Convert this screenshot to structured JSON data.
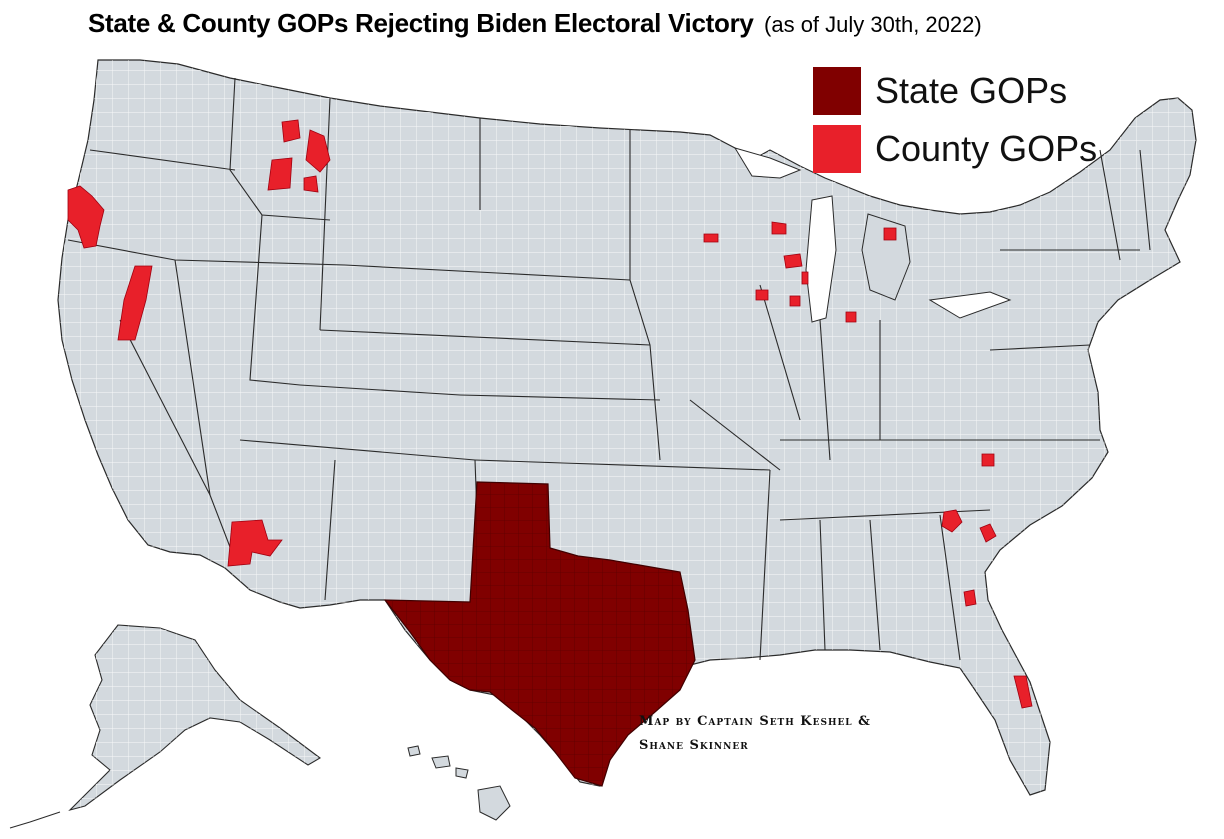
{
  "title": {
    "main": "State & County GOPs Rejecting Biden Electoral Victory",
    "date": "(as of July 30th, 2022)"
  },
  "legend": {
    "items": [
      {
        "label": "State GOPs",
        "color": "#800000"
      },
      {
        "label": "County GOPs",
        "color": "#e8202a"
      }
    ]
  },
  "credit": {
    "line1": "Map by Captain Seth Keshel &",
    "line2": "Shane Skinner"
  },
  "colors": {
    "land": "#d3d9de",
    "border": "#2a2a2a",
    "county_lines": "#ffffff",
    "state_gop": "#800000",
    "county_gop": "#e8202a"
  },
  "highlighted": {
    "state_gops": [
      "Texas"
    ]
  }
}
